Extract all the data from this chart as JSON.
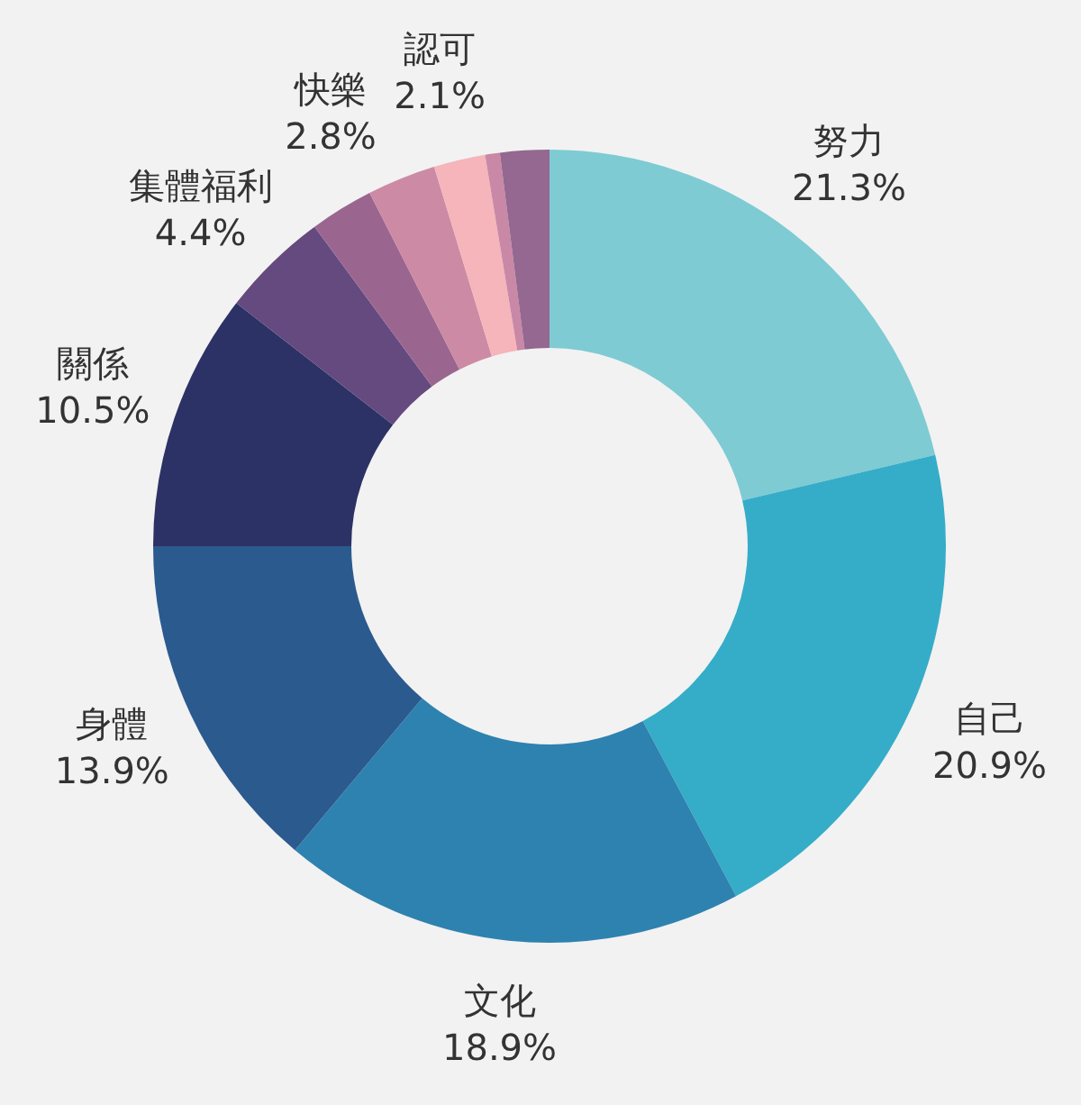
{
  "chart_data": {
    "type": "donut",
    "categories": [
      "努力",
      "自己",
      "文化",
      "身體",
      "關係",
      "集體福利",
      null,
      "快樂",
      "認可",
      null,
      null
    ],
    "values": [
      21.3,
      20.9,
      18.9,
      13.9,
      10.5,
      4.4,
      2.6,
      2.8,
      2.1,
      0.6,
      2.0
    ],
    "value_labels": [
      "21.3%",
      "20.9%",
      "18.9%",
      "13.9%",
      "10.5%",
      "4.4%",
      null,
      "2.8%",
      "2.1%",
      null,
      null
    ],
    "colors": [
      "#7ecbd3",
      "#35adc8",
      "#2e82b0",
      "#2b5a8f",
      "#2c3266",
      "#644a7f",
      "#9a6690",
      "#cc8aa4",
      "#f5b5bb",
      "#c988a6",
      "#946890"
    ],
    "legend": false
  }
}
